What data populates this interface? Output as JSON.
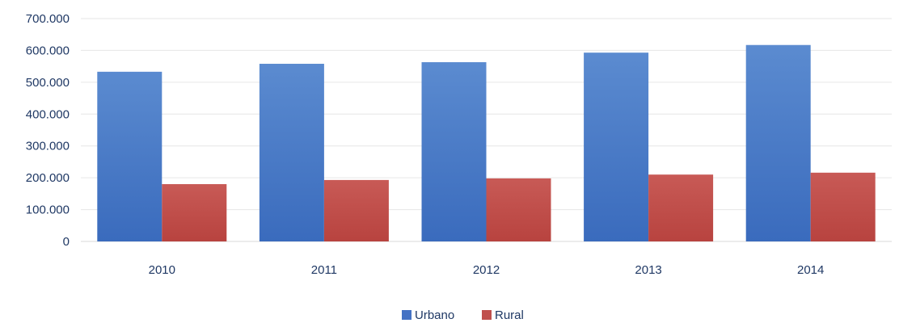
{
  "chart_data": {
    "type": "bar",
    "categories": [
      "2010",
      "2011",
      "2012",
      "2013",
      "2014"
    ],
    "series": [
      {
        "name": "Urbano",
        "color": "#4472c4",
        "values": [
          533000,
          558000,
          563000,
          593000,
          617000
        ]
      },
      {
        "name": "Rural",
        "color": "#c0504d",
        "values": [
          180000,
          193000,
          198000,
          210000,
          216000
        ]
      }
    ],
    "ylim": [
      0,
      700000
    ],
    "yticks": [
      0,
      100000,
      200000,
      300000,
      400000,
      500000,
      600000,
      700000
    ],
    "ytick_labels": [
      "0",
      "100.000",
      "200.000",
      "300.000",
      "400.000",
      "500.000",
      "600.000",
      "700.000"
    ],
    "grid": true,
    "legend_position": "bottom-center",
    "title": "",
    "xlabel": "",
    "ylabel": ""
  }
}
